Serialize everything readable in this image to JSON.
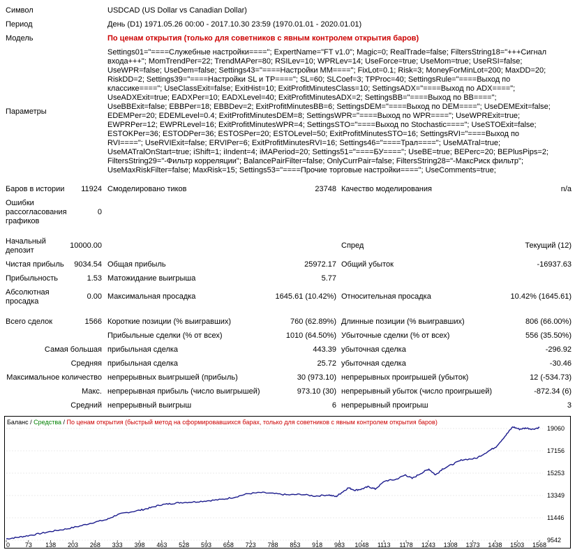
{
  "header": {
    "symbol_label": "Символ",
    "symbol_value": "USDCAD (US Dollar vs Canadian Dollar)",
    "period_label": "Период",
    "period_value": "День (D1) 1971.05.26 00:00 - 2017.10.30 23:59 (1970.01.01 - 2020.01.01)",
    "model_label": "Модель",
    "model_value": "По ценам открытия (только для советников с явным контролем открытия баров)",
    "params_label": "Параметры",
    "params_value": "Settings01=\"====Служебные настройки====\"; ExpertName=\"FT v1.0\"; Magic=0; RealTrade=false; FiltersString18=\"+++Сигнал входа+++\"; MomTrendPer=22; TrendMAPer=80; RSILev=10; WPRLev=14; UseForce=true; UseMom=true; UseRSI=false; UseWPR=false; UseDem=false; Settings43=\"====Настройки MM====\"; FixLot=0.1; Risk=3; MoneyForMinLot=200; MaxDD=20; RiskDD=2; Settings39=\"====Настройки SL и TP====\"; SL=60; SLCoef=3; TPProc=40; SettingsRule=\"====Выход по классике====\"; UseClassExit=false; ExitHist=10; ExitProfitMinutesClass=10; SettingsADX=\"====Выход по ADX====\"; UseADXExit=true; EADXPer=10; EADXLevel=40; ExitProfitMinutesADX=2; SettingsBB=\"====Выход по BB====\"; UseBBExit=false; EBBPer=18; EBBDev=2; ExitProfitMinutesBB=6; SettingsDEM=\"====Выход по DEM====\"; UseDEMExit=false; EDEMPer=20; EDEMLevel=0.4; ExitProfitMinutesDEM=8; SettingsWPR=\"====Выход по WPR====\"; UseWPRExit=true; EWPRPer=12; EWPRLevel=16; ExitProfitMinutesWPR=4; SettingsSTO=\"====Выход по Stochastic====\"; UseSTOExit=false; ESTOKPer=36; ESTODPer=36; ESTOSPer=20; ESTOLevel=50; ExitProfitMinutesSTO=16; SettingsRVI=\"====Выход по RVI====\"; UseRVIExit=false; ERVIPer=6; ExitProfitMinutesRVI=16; Settings46=\"====Трал====\"; UseMATral=true; UseMATralOnStart=true; iShift=1; iIndent=4; iMAPeriod=20; Settings51=\"====БУ====\"; UseBE=true; BEPerc=20; BEPlusPips=2; FiltersString29=\"-Фильтр корреляции\"; BalancePairFilter=false; OnlyCurrPair=false; FiltersString28=\"-МаксРиск фильтр\"; UseMaxRiskFilter=false; MaxRisk=15; Settings53=\"====Прочие торговые настройки====\"; UseComments=true;"
  },
  "stats": {
    "bars_label": "Баров в истории",
    "bars_value": "11924",
    "ticks_label": "Смоделировано тиков",
    "ticks_value": "23748",
    "quality_label": "Качество моделирования",
    "quality_value": "n/a",
    "errors_label_1": "Ошибки",
    "errors_label_2": "рассогласования",
    "errors_label_3": "графиков",
    "errors_value": "0",
    "deposit_label_1": "Начальный",
    "deposit_label_2": "депозит",
    "deposit_value": "10000.00",
    "spread_label": "Спред",
    "spread_value": "Текущий (12)",
    "net_label": "Чистая прибыль",
    "net_value": "9034.54",
    "gross_profit_label": "Общая прибыль",
    "gross_profit_value": "25972.17",
    "gross_loss_label": "Общий убыток",
    "gross_loss_value": "-16937.63",
    "pf_label": "Прибыльность",
    "pf_value": "1.53",
    "payoff_label": "Матожидание выигрыша",
    "payoff_value": "5.77",
    "absdd_label_1": "Абсолютная",
    "absdd_label_2": "просадка",
    "absdd_value": "0.00",
    "maxdd_label": "Максимальная просадка",
    "maxdd_value": "1645.61 (10.42%)",
    "reldd_label": "Относительная просадка",
    "reldd_value": "10.42% (1645.61)",
    "trades_label": "Всего сделок",
    "trades_value": "1566",
    "short_label": "Короткие позиции (% выигравших)",
    "short_value": "760 (62.89%)",
    "long_label": "Длинные позиции (% выигравших)",
    "long_value": "806 (66.00%)",
    "profit_trades_label": "Прибыльные сделки (% от всех)",
    "profit_trades_value": "1010 (64.50%)",
    "loss_trades_label": "Убыточные сделки (% от всех)",
    "loss_trades_value": "556 (35.50%)",
    "largest_label": "Самая большая",
    "largest_profit_label": "прибыльная сделка",
    "largest_profit_value": "443.39",
    "largest_loss_label": "убыточная сделка",
    "largest_loss_value": "-296.92",
    "average_label": "Средняя",
    "average_profit_label": "прибыльная сделка",
    "average_profit_value": "25.72",
    "average_loss_label": "убыточная сделка",
    "average_loss_value": "-30.46",
    "max_label": "Максимальное количество",
    "max_wins_label": "непрерывных выигрышей (прибыль)",
    "max_wins_value": "30 (973.10)",
    "max_losses_label": "непрерывных проигрышей (убыток)",
    "max_losses_value": "12 (-534.73)",
    "maximal_label": "Макс.",
    "maximal_profit_label": "непрерывная прибыль (число выигрышей)",
    "maximal_profit_value": "973.10 (30)",
    "maximal_loss_label": "непрерывный убыток (число проигрышей)",
    "maximal_loss_value": "-872.34 (6)",
    "avg_cons_label": "Средний",
    "avg_wins_label": "непрерывный выигрыш",
    "avg_wins_value": "6",
    "avg_losses_label": "непрерывный проигрыш",
    "avg_losses_value": "3"
  },
  "chart_data": {
    "type": "line",
    "legend_balance": "Баланс",
    "legend_sep1": " / ",
    "legend_equity": "Средства",
    "legend_sep2": " / ",
    "legend_note": "По ценам открытия (быстрый метод на сформировавшихся барах, только для советников с явным контролем открытия баров)",
    "colors": {
      "balance": "#1a1a8c",
      "equity": "#008000",
      "note": "#cc0000",
      "axis": "#000000"
    },
    "xticks": [
      "0",
      "73",
      "138",
      "203",
      "268",
      "333",
      "398",
      "463",
      "528",
      "593",
      "658",
      "723",
      "788",
      "853",
      "918",
      "983",
      "1048",
      "1113",
      "1178",
      "1243",
      "1308",
      "1373",
      "1438",
      "1503",
      "1568"
    ],
    "yticks": [
      "19060",
      "17156",
      "15253",
      "13349",
      "11446",
      "9542"
    ],
    "ylim": [
      9542,
      19060
    ],
    "xlim": [
      0,
      1600
    ],
    "series": [
      {
        "name": "Баланс",
        "points": [
          [
            0,
            9650
          ],
          [
            30,
            9760
          ],
          [
            60,
            9900
          ],
          [
            100,
            10100
          ],
          [
            140,
            10320
          ],
          [
            180,
            10500
          ],
          [
            220,
            10750
          ],
          [
            260,
            11050
          ],
          [
            300,
            11300
          ],
          [
            330,
            11700
          ],
          [
            360,
            11900
          ],
          [
            400,
            12100
          ],
          [
            430,
            12300
          ],
          [
            460,
            12550
          ],
          [
            490,
            12650
          ],
          [
            520,
            12750
          ],
          [
            560,
            12800
          ],
          [
            600,
            12900
          ],
          [
            640,
            13000
          ],
          [
            680,
            13200
          ],
          [
            720,
            13500
          ],
          [
            760,
            13600
          ],
          [
            800,
            13500
          ],
          [
            840,
            13400
          ],
          [
            880,
            13450
          ],
          [
            920,
            13300
          ],
          [
            960,
            13400
          ],
          [
            983,
            13249
          ],
          [
            1000,
            13600
          ],
          [
            1020,
            14000
          ],
          [
            1040,
            13800
          ],
          [
            1060,
            13900
          ],
          [
            1080,
            14100
          ],
          [
            1100,
            13900
          ],
          [
            1130,
            14600
          ],
          [
            1160,
            14700
          ],
          [
            1190,
            15100
          ],
          [
            1210,
            14800
          ],
          [
            1240,
            15300
          ],
          [
            1260,
            15600
          ],
          [
            1280,
            15100
          ],
          [
            1300,
            15600
          ],
          [
            1330,
            16000
          ],
          [
            1360,
            16400
          ],
          [
            1400,
            16500
          ],
          [
            1430,
            17000
          ],
          [
            1460,
            17500
          ],
          [
            1490,
            18500
          ],
          [
            1510,
            19200
          ],
          [
            1530,
            19000
          ],
          [
            1550,
            19100
          ],
          [
            1570,
            19000
          ],
          [
            1590,
            19150
          ]
        ]
      }
    ]
  }
}
